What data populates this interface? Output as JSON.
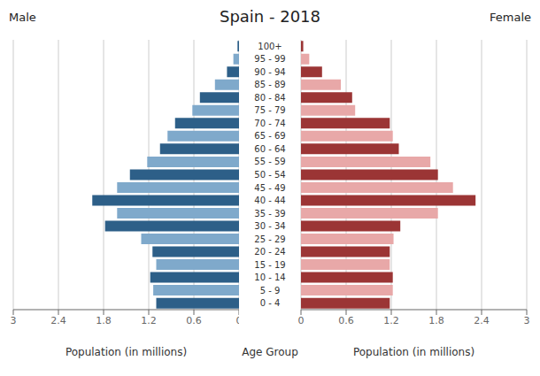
{
  "chart_data": {
    "type": "bar",
    "orientation": "horizontal",
    "title": "Spain - 2018",
    "xlabel": "Population (in millions)",
    "ylabel": "Age Group",
    "categories": [
      "0 - 4",
      "5 - 9",
      "10 - 14",
      "15 - 19",
      "20 - 24",
      "25 - 29",
      "30 - 34",
      "35 - 39",
      "40 - 44",
      "45 - 49",
      "50 - 54",
      "55 - 59",
      "60 - 64",
      "65 - 69",
      "70 - 74",
      "75 - 79",
      "80 - 84",
      "85 - 89",
      "90 - 94",
      "95 - 99",
      "100+"
    ],
    "series": [
      {
        "name": "Male",
        "colors": [
          "#2d5f88",
          "#7fa9cb",
          "#2d5f88",
          "#7fa9cb",
          "#2d5f88",
          "#7fa9cb",
          "#2d5f88",
          "#7fa9cb",
          "#2d5f88",
          "#7fa9cb",
          "#2d5f88",
          "#7fa9cb",
          "#2d5f88",
          "#7fa9cb",
          "#2d5f88",
          "#7fa9cb",
          "#2d5f88",
          "#7fa9cb",
          "#2d5f88",
          "#7fa9cb",
          "#2d5f88"
        ],
        "values": [
          1.1,
          1.14,
          1.18,
          1.1,
          1.15,
          1.3,
          1.78,
          1.62,
          1.95,
          1.62,
          1.45,
          1.22,
          1.05,
          0.95,
          0.85,
          0.62,
          0.52,
          0.32,
          0.16,
          0.075,
          0.02
        ]
      },
      {
        "name": "Female",
        "colors": [
          "#9b3535",
          "#e8a8a8",
          "#9b3535",
          "#e8a8a8",
          "#9b3535",
          "#e8a8a8",
          "#9b3535",
          "#e8a8a8",
          "#9b3535",
          "#e8a8a8",
          "#9b3535",
          "#e8a8a8",
          "#9b3535",
          "#e8a8a8",
          "#9b3535",
          "#e8a8a8",
          "#9b3535",
          "#e8a8a8",
          "#9b3535",
          "#e8a8a8",
          "#9b3535"
        ],
        "values": [
          1.18,
          1.22,
          1.22,
          1.18,
          1.18,
          1.23,
          1.32,
          1.82,
          2.32,
          2.02,
          1.82,
          1.72,
          1.3,
          1.22,
          1.18,
          0.72,
          0.68,
          0.53,
          0.28,
          0.11,
          0.03
        ]
      }
    ],
    "xlim": [
      0,
      3
    ],
    "xticks": [
      0,
      0.6,
      1.2,
      1.8,
      2.4,
      3
    ],
    "grid": true
  }
}
